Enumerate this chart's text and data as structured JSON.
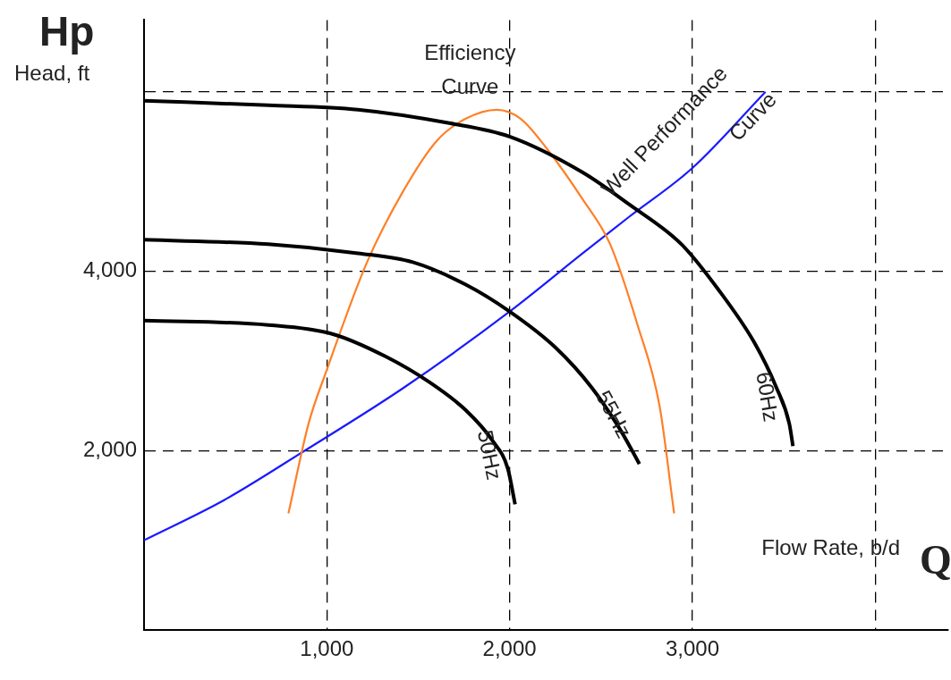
{
  "chart_data": {
    "type": "line",
    "xlabel": "Flow Rate, b/d",
    "ylabel": "Head, ft",
    "annotations": [
      "Hp",
      "Q"
    ],
    "xlim": [
      0,
      4400
    ],
    "ylim": [
      0,
      6800
    ],
    "xticks": [
      {
        "value": 1000,
        "label": "1,000"
      },
      {
        "value": 2000,
        "label": "2,000"
      },
      {
        "value": 3000,
        "label": "3,000"
      },
      {
        "value": 4000,
        "label": null
      }
    ],
    "yticks": [
      {
        "value": 2000,
        "label": "2,000"
      },
      {
        "value": 4000,
        "label": "4,000"
      },
      {
        "value": 6000,
        "label": null
      }
    ],
    "grid": true,
    "legend": false,
    "marker": "none",
    "line_style": "solid",
    "series": [
      {
        "name": "60Hz",
        "color": "#000000",
        "x": [
          0,
          680,
          1170,
          1670,
          2000,
          2400,
          2650,
          2940,
          3140,
          3340,
          3460,
          3530,
          3550
        ],
        "values": [
          5900,
          5850,
          5800,
          5650,
          5500,
          5100,
          4750,
          4300,
          3800,
          3200,
          2700,
          2300,
          2050
        ]
      },
      {
        "name": "55Hz",
        "color": "#000000",
        "x": [
          0,
          680,
          1170,
          1470,
          1760,
          2000,
          2250,
          2450,
          2600,
          2670,
          2710
        ],
        "values": [
          4350,
          4300,
          4200,
          4100,
          3850,
          3550,
          3150,
          2700,
          2250,
          2000,
          1850
        ]
      },
      {
        "name": "50Hz",
        "color": "#000000",
        "x": [
          0,
          680,
          1030,
          1320,
          1570,
          1760,
          1910,
          1990,
          2030
        ],
        "values": [
          3450,
          3400,
          3300,
          3050,
          2750,
          2450,
          2100,
          1800,
          1400
        ]
      },
      {
        "name": "Efficiency Curve",
        "color": "#ff7f27",
        "x": [
          790,
          900,
          1000,
          1220,
          1420,
          1600,
          1760,
          1930,
          2060,
          2210,
          2400,
          2550,
          2700,
          2820,
          2900
        ],
        "values": [
          1300,
          2300,
          2900,
          4100,
          4900,
          5450,
          5700,
          5800,
          5700,
          5350,
          4800,
          4300,
          3400,
          2500,
          1300
        ]
      },
      {
        "name": "Well Performance Curve",
        "color": "#1a1aff",
        "x": [
          0,
          440,
          880,
          1420,
          2000,
          2400,
          2650,
          3000,
          3400
        ],
        "values": [
          1000,
          1450,
          2000,
          2700,
          3550,
          4200,
          4600,
          5150,
          6000
        ]
      }
    ]
  }
}
